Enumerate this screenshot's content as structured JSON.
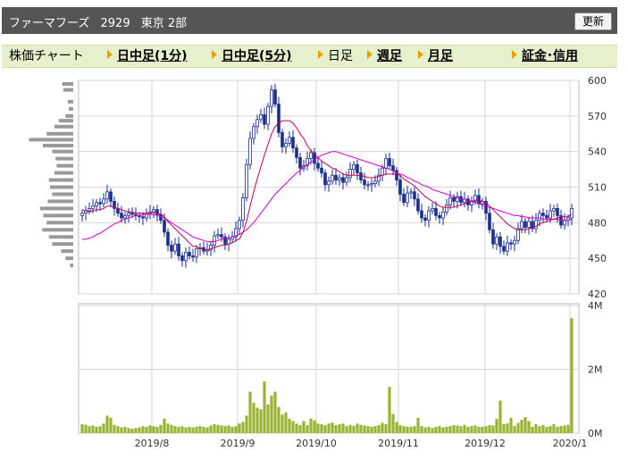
{
  "header": {
    "company": "ファーマフーズ",
    "code": "2929",
    "market": "東京 2部",
    "refresh_label": "更新"
  },
  "nav": {
    "title": "株価チャート",
    "items": [
      {
        "label": "日中足(1分)",
        "link": true
      },
      {
        "label": "日中足(5分)",
        "link": true
      },
      {
        "label": "日足",
        "link": false
      },
      {
        "label": "週足",
        "link": true
      },
      {
        "label": "月足",
        "link": true
      },
      {
        "label": "証金･信用",
        "link": true
      }
    ]
  },
  "colors": {
    "candle": "#1a2e8c",
    "ma_short": "#c0005a",
    "ma_long": "#cc00cc",
    "volume": "#99b433",
    "profile": "#999999",
    "grid": "#d6d6d6"
  },
  "chart_data": [
    {
      "type": "candlestick",
      "x_labels": [
        "2019/8",
        "2019/9",
        "2019/10",
        "2019/11",
        "2019/12",
        "2020/1"
      ],
      "yticks": [
        420,
        450,
        480,
        510,
        540,
        570,
        600
      ],
      "ylim": [
        420,
        600
      ],
      "close": [
        488,
        490,
        492,
        494,
        497,
        496,
        500,
        506,
        498,
        492,
        488,
        484,
        486,
        488,
        487,
        486,
        485,
        484,
        487,
        489,
        491,
        487,
        482,
        472,
        461,
        456,
        462,
        452,
        448,
        455,
        452,
        451,
        458,
        459,
        456,
        457,
        461,
        469,
        470,
        468,
        462,
        466,
        468,
        475,
        482,
        501,
        529,
        551,
        561,
        567,
        571,
        563,
        578,
        592,
        580,
        556,
        544,
        547,
        552,
        543,
        535,
        526,
        528,
        534,
        539,
        530,
        526,
        522,
        512,
        515,
        520,
        516,
        518,
        514,
        518,
        525,
        529,
        522,
        516,
        512,
        512,
        513,
        515,
        520,
        526,
        534,
        528,
        524,
        516,
        504,
        497,
        505,
        506,
        500,
        490,
        484,
        482,
        490,
        492,
        486,
        484,
        489,
        495,
        501,
        498,
        502,
        497,
        500,
        495,
        498,
        503,
        496,
        498,
        488,
        474,
        462,
        468,
        460,
        456,
        463,
        462,
        465,
        475,
        481,
        476,
        481,
        475,
        482,
        488,
        486,
        484,
        490,
        492,
        486,
        478,
        482,
        484,
        492
      ],
      "ma_short": [
        491,
        490,
        489,
        490,
        491,
        491,
        492,
        494,
        494,
        493,
        492,
        491,
        490,
        489,
        489,
        488,
        488,
        488,
        488,
        488,
        489,
        488,
        487,
        485,
        481,
        478,
        475,
        472,
        469,
        466,
        463,
        460,
        460,
        458,
        458,
        457,
        458,
        459,
        460,
        461,
        461,
        462,
        463,
        465,
        466,
        472,
        481,
        494,
        506,
        517,
        527,
        537,
        546,
        555,
        561,
        564,
        566,
        566,
        566,
        564,
        560,
        555,
        551,
        545,
        541,
        538,
        535,
        532,
        530,
        528,
        526,
        525,
        523,
        521,
        520,
        520,
        520,
        520,
        520,
        519,
        518,
        518,
        518,
        519,
        520,
        521,
        521,
        521,
        521,
        520,
        517,
        515,
        513,
        511,
        508,
        505,
        502,
        500,
        498,
        496,
        494,
        493,
        493,
        493,
        493,
        494,
        495,
        496,
        497,
        498,
        499,
        499,
        498,
        497,
        494,
        491,
        488,
        485,
        482,
        479,
        477,
        475,
        474,
        474,
        474,
        475,
        476,
        477,
        479,
        480,
        481,
        482,
        483,
        484,
        485,
        485,
        485,
        487
      ],
      "ma_long": [
        466,
        466,
        467,
        468,
        470,
        471,
        473,
        475,
        477,
        479,
        480,
        482,
        483,
        484,
        485,
        486,
        486,
        487,
        487,
        487,
        487,
        486,
        485,
        484,
        482,
        480,
        478,
        476,
        474,
        472,
        470,
        468,
        467,
        466,
        465,
        464,
        464,
        464,
        465,
        466,
        467,
        467,
        468,
        469,
        470,
        472,
        474,
        477,
        480,
        484,
        488,
        492,
        496,
        500,
        504,
        507,
        510,
        513,
        516,
        519,
        522,
        524,
        527,
        529,
        531,
        533,
        535,
        537,
        538,
        539,
        540,
        540,
        539,
        538,
        537,
        536,
        535,
        534,
        533,
        532,
        531,
        530,
        529,
        528,
        527,
        526,
        525,
        524,
        522,
        521,
        520,
        518,
        517,
        515,
        514,
        512,
        511,
        510,
        508,
        507,
        506,
        505,
        504,
        503,
        502,
        501,
        500,
        500,
        499,
        498,
        497,
        496,
        495,
        494,
        493,
        492,
        491,
        490,
        489,
        488,
        487,
        486,
        486,
        485,
        485,
        484,
        484,
        484,
        484,
        483,
        483,
        483,
        483,
        483,
        482,
        482,
        482,
        483
      ],
      "volume_profile": [
        {
          "price": 597,
          "volume": 0.2
        },
        {
          "price": 592,
          "volume": 0.18
        },
        {
          "price": 582,
          "volume": 0.1
        },
        {
          "price": 576,
          "volume": 0.08
        },
        {
          "price": 570,
          "volume": 0.14
        },
        {
          "price": 566,
          "volume": 0.26
        },
        {
          "price": 561,
          "volume": 0.34
        },
        {
          "price": 555,
          "volume": 0.48
        },
        {
          "price": 550,
          "volume": 0.8
        },
        {
          "price": 545,
          "volume": 0.55
        },
        {
          "price": 540,
          "volume": 0.38
        },
        {
          "price": 534,
          "volume": 0.32
        },
        {
          "price": 528,
          "volume": 0.3
        },
        {
          "price": 522,
          "volume": 0.34
        },
        {
          "price": 516,
          "volume": 0.44
        },
        {
          "price": 510,
          "volume": 0.42
        },
        {
          "price": 504,
          "volume": 0.38
        },
        {
          "price": 498,
          "volume": 0.46
        },
        {
          "price": 492,
          "volume": 0.6
        },
        {
          "price": 486,
          "volume": 0.54
        },
        {
          "price": 480,
          "volume": 0.48
        },
        {
          "price": 474,
          "volume": 0.56
        },
        {
          "price": 468,
          "volume": 0.44
        },
        {
          "price": 462,
          "volume": 0.38
        },
        {
          "price": 456,
          "volume": 0.22
        },
        {
          "price": 450,
          "volume": 0.14
        },
        {
          "price": 444,
          "volume": 0.06
        }
      ]
    },
    {
      "type": "bar",
      "ylabel_ticks": [
        "0M",
        "2M",
        "4M"
      ],
      "ylim": [
        0,
        4
      ],
      "values": [
        0.28,
        0.26,
        0.22,
        0.24,
        0.2,
        0.22,
        0.3,
        0.55,
        0.48,
        0.26,
        0.22,
        0.18,
        0.2,
        0.16,
        0.14,
        0.16,
        0.18,
        0.22,
        0.2,
        0.24,
        0.22,
        0.2,
        0.26,
        0.46,
        0.3,
        0.26,
        0.22,
        0.2,
        0.22,
        0.18,
        0.2,
        0.18,
        0.2,
        0.22,
        0.2,
        0.18,
        0.24,
        0.28,
        0.26,
        0.24,
        0.22,
        0.24,
        0.2,
        0.22,
        0.3,
        0.35,
        0.55,
        1.3,
        0.95,
        0.8,
        0.75,
        1.62,
        0.9,
        1.18,
        1.3,
        0.82,
        0.58,
        0.65,
        0.45,
        0.38,
        0.3,
        0.25,
        0.38,
        0.25,
        0.46,
        0.4,
        0.3,
        0.28,
        0.25,
        0.3,
        0.33,
        0.25,
        0.28,
        0.3,
        0.22,
        0.26,
        0.23,
        0.3,
        0.26,
        0.24,
        0.22,
        0.2,
        0.22,
        0.25,
        0.32,
        0.28,
        1.45,
        0.6,
        0.35,
        0.25,
        0.22,
        0.2,
        0.2,
        0.22,
        0.48,
        0.22,
        0.18,
        0.2,
        0.16,
        0.2,
        0.22,
        0.18,
        0.2,
        0.22,
        0.25,
        0.24,
        0.22,
        0.26,
        0.2,
        0.22,
        0.24,
        0.2,
        0.2,
        0.22,
        0.25,
        0.24,
        0.45,
        1.02,
        0.28,
        0.3,
        0.48,
        0.22,
        0.32,
        0.42,
        0.5,
        0.38,
        0.2,
        0.28,
        0.22,
        0.25,
        0.2,
        0.22,
        0.28,
        0.2,
        0.22,
        0.24,
        0.26,
        3.6
      ]
    }
  ]
}
